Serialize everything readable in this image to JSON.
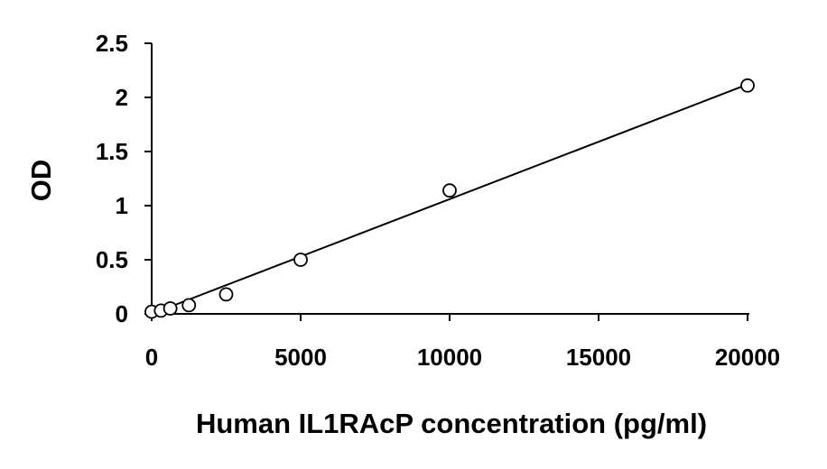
{
  "chart_data": {
    "type": "scatter",
    "xlabel": "Human IL1RAcP concentration (pg/ml)",
    "ylabel": "OD",
    "xlim": [
      0,
      20000
    ],
    "ylim": [
      0,
      2.5
    ],
    "x_ticks": [
      0,
      5000,
      10000,
      15000,
      20000
    ],
    "y_ticks": [
      0,
      0.5,
      1,
      1.5,
      2,
      2.5
    ],
    "x_tick_labels": [
      "0",
      "5000",
      "10000",
      "15000",
      "20000"
    ],
    "y_tick_labels": [
      "0",
      "0.5",
      "1",
      "1.5",
      "2",
      "2.5"
    ],
    "grid": false,
    "legend": "none",
    "series": [
      {
        "x": [
          0,
          312.5,
          625,
          1250,
          2500,
          5000,
          10000,
          20000
        ],
        "y": [
          0.02,
          0.03,
          0.05,
          0.08,
          0.18,
          0.5,
          1.14,
          2.11
        ],
        "marker": "open-circle"
      }
    ],
    "trendline": {
      "type": "linear",
      "x": [
        0,
        20000
      ],
      "y": [
        0.0,
        2.12
      ]
    },
    "colors": {
      "marker_stroke": "#000000",
      "marker_fill": "#ffffff",
      "line": "#000000",
      "axis": "#000000"
    }
  }
}
